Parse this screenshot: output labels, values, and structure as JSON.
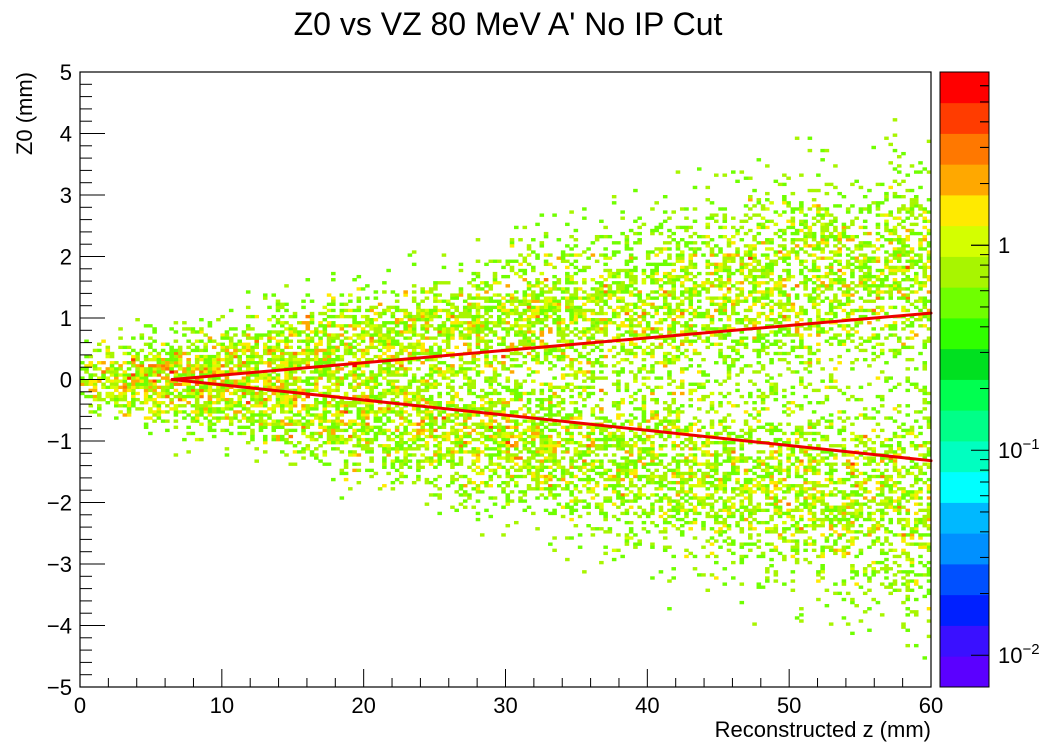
{
  "chart_data": {
    "type": "heatmap",
    "title": "Z0 vs VZ 80 MeV A'  No IP Cut",
    "xlabel": "Reconstructed z (mm)",
    "ylabel": "Z0 (mm)",
    "xlim": [
      0,
      60
    ],
    "ylim": [
      -5,
      5
    ],
    "x_ticks": [
      "0",
      "10",
      "20",
      "30",
      "40",
      "50",
      "60"
    ],
    "y_ticks": [
      "−5",
      "−4",
      "−3",
      "−2",
      "−1",
      "0",
      "1",
      "2",
      "3",
      "4",
      "5"
    ],
    "z_scale": "log",
    "z_range": [
      0.007,
      7
    ],
    "colorbar_labels": [
      {
        "base": "1",
        "exp": "",
        "value": 1
      },
      {
        "base": "10",
        "exp": "−1",
        "value": 0.1
      },
      {
        "base": "10",
        "exp": "−2",
        "value": 0.01
      }
    ],
    "palette": [
      "#5b00ff",
      "#3a10ff",
      "#0020ff",
      "#0050ff",
      "#0090ff",
      "#00b8ff",
      "#00ffff",
      "#00ffc0",
      "#00ff88",
      "#00ff50",
      "#00e020",
      "#30ff00",
      "#6fff00",
      "#a8f500",
      "#d4ff00",
      "#ffea00",
      "#ffa800",
      "#ff7800",
      "#ff3c00",
      "#ff0000"
    ],
    "bands": [
      {
        "name": "upper",
        "z_start": 0,
        "z_end": 60,
        "slope": 0.032,
        "intercept": -0.05,
        "sigma0": 0.25,
        "sigma_slope": 0.011
      },
      {
        "name": "lower",
        "z_start": 0,
        "z_end": 60,
        "slope": -0.036,
        "intercept": 0.05,
        "sigma0": 0.25,
        "sigma_slope": 0.011
      }
    ],
    "cut_lines": [
      {
        "name": "upper-cut",
        "x": [
          6.5,
          60
        ],
        "y": [
          0.0,
          1.08
        ],
        "color": "#ee0000"
      },
      {
        "name": "lower-cut",
        "x": [
          6.5,
          60
        ],
        "y": [
          0.0,
          -1.32
        ],
        "color": "#ee0000"
      }
    ],
    "grid": false,
    "legend": "none"
  }
}
